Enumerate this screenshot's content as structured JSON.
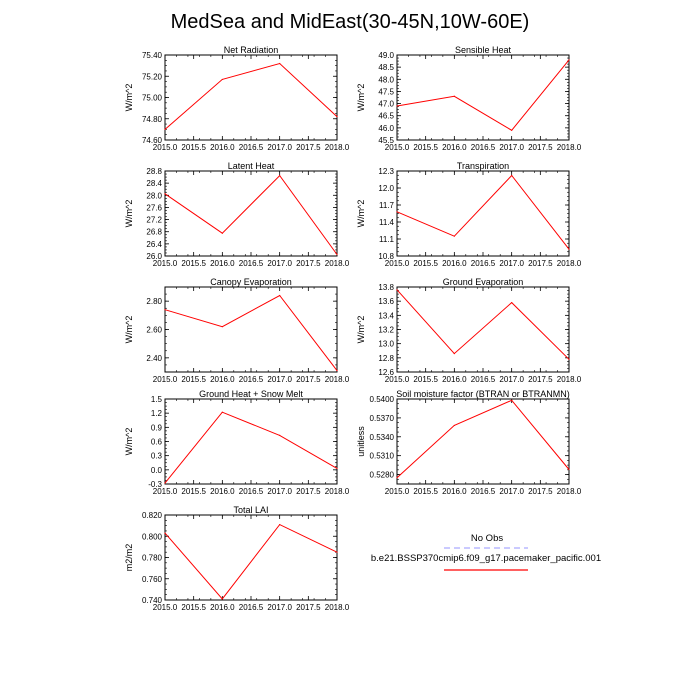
{
  "title": "MedSea and MidEast(30-45N,10W-60E)",
  "colors": {
    "series": "#ff0000",
    "noobs": "#aaaaff",
    "axis": "#000000"
  },
  "x_axis": {
    "range": [
      2015.0,
      2018.0
    ],
    "ticks": [
      2015.0,
      2015.5,
      2016.0,
      2016.5,
      2017.0,
      2017.5,
      2018.0
    ],
    "tick_labels": [
      "2015.0",
      "2015.5",
      "2016.0",
      "2016.5",
      "2017.0",
      "2017.5",
      "2018.0"
    ]
  },
  "legend": {
    "no_obs_label": "No Obs",
    "series_label": "b.e21.BSSP370cmip6.f09_g17.pacemaker_pacific.001"
  },
  "chart_data": [
    {
      "type": "line",
      "title": "Net Radiation",
      "ylabel": "W/m^2",
      "x": [
        2015,
        2016,
        2017,
        2018
      ],
      "values": [
        74.7,
        75.17,
        75.32,
        74.82
      ],
      "ylim": [
        74.6,
        75.4
      ],
      "yticks": [
        74.6,
        74.8,
        75.0,
        75.2,
        75.4
      ],
      "ytick_labels": [
        "74.60",
        "74.80",
        "75.00",
        "75.20",
        "75.40"
      ]
    },
    {
      "type": "line",
      "title": "Sensible Heat",
      "ylabel": "W/m^2",
      "x": [
        2015,
        2016,
        2017,
        2018
      ],
      "values": [
        46.9,
        47.3,
        45.9,
        48.8
      ],
      "ylim": [
        45.5,
        49.0
      ],
      "yticks": [
        45.5,
        46.0,
        46.5,
        47.0,
        47.5,
        48.0,
        48.5,
        49.0
      ],
      "ytick_labels": [
        "45.5",
        "46.0",
        "46.5",
        "47.0",
        "47.5",
        "48.0",
        "48.5",
        "49.0"
      ]
    },
    {
      "type": "line",
      "title": "Latent Heat",
      "ylabel": "W/m^2",
      "x": [
        2015,
        2016,
        2017,
        2018
      ],
      "values": [
        28.05,
        26.75,
        28.65,
        26.05
      ],
      "ylim": [
        26.0,
        28.8
      ],
      "yticks": [
        26.0,
        26.4,
        26.8,
        27.2,
        27.6,
        28.0,
        28.4,
        28.8
      ],
      "ytick_labels": [
        "26.0",
        "26.4",
        "26.8",
        "27.2",
        "27.6",
        "28.0",
        "28.4",
        "28.8"
      ]
    },
    {
      "type": "line",
      "title": "Transpiration",
      "ylabel": "W/m^2",
      "x": [
        2015,
        2016,
        2017,
        2018
      ],
      "values": [
        11.58,
        11.15,
        12.22,
        10.92
      ],
      "ylim": [
        10.8,
        12.3
      ],
      "yticks": [
        10.8,
        11.1,
        11.4,
        11.7,
        12.0,
        12.3
      ],
      "ytick_labels": [
        "10.8",
        "11.1",
        "11.4",
        "11.7",
        "12.0",
        "12.3"
      ]
    },
    {
      "type": "line",
      "title": "Canopy Evaporation",
      "ylabel": "W/m^2",
      "x": [
        2015,
        2016,
        2017,
        2018
      ],
      "values": [
        2.74,
        2.62,
        2.84,
        2.31
      ],
      "ylim": [
        2.3,
        2.9
      ],
      "yticks": [
        2.4,
        2.6,
        2.8
      ],
      "ytick_labels": [
        "2.40",
        "2.60",
        "2.80"
      ]
    },
    {
      "type": "line",
      "title": "Ground Evaporation",
      "ylabel": "W/m^2",
      "x": [
        2015,
        2016,
        2017,
        2018
      ],
      "values": [
        13.76,
        12.86,
        13.58,
        12.78
      ],
      "ylim": [
        12.6,
        13.8
      ],
      "yticks": [
        12.6,
        12.8,
        13.0,
        13.2,
        13.4,
        13.6,
        13.8
      ],
      "ytick_labels": [
        "12.6",
        "12.8",
        "13.0",
        "13.2",
        "13.4",
        "13.6",
        "13.8"
      ]
    },
    {
      "type": "line",
      "title": "Ground Heat + Snow Melt",
      "ylabel": "W/m^2",
      "x": [
        2015,
        2016,
        2017,
        2018
      ],
      "values": [
        -0.28,
        1.22,
        0.73,
        0.03
      ],
      "ylim": [
        -0.3,
        1.5
      ],
      "yticks": [
        -0.3,
        0.0,
        0.3,
        0.6,
        0.9,
        1.2,
        1.5
      ],
      "ytick_labels": [
        "-0.3",
        "0.0",
        "0.3",
        "0.6",
        "0.9",
        "1.2",
        "1.5"
      ]
    },
    {
      "type": "line",
      "title": "Soil moisture factor (BTRAN or BTRANMN)",
      "ylabel": "unitless",
      "x": [
        2015,
        2016,
        2017,
        2018
      ],
      "values": [
        0.5275,
        0.5358,
        0.5398,
        0.5288
      ],
      "ylim": [
        0.5265,
        0.54
      ],
      "yticks": [
        0.528,
        0.531,
        0.534,
        0.537,
        0.54
      ],
      "ytick_labels": [
        "0.5280",
        "0.5310",
        "0.5340",
        "0.5370",
        "0.5400"
      ]
    },
    {
      "type": "line",
      "title": "Total LAI",
      "ylabel": "m2/m2",
      "x": [
        2015,
        2016,
        2017,
        2018
      ],
      "values": [
        0.803,
        0.741,
        0.811,
        0.785
      ],
      "ylim": [
        0.74,
        0.82
      ],
      "yticks": [
        0.74,
        0.76,
        0.78,
        0.8,
        0.82
      ],
      "ytick_labels": [
        "0.740",
        "0.760",
        "0.780",
        "0.800",
        "0.820"
      ]
    }
  ]
}
